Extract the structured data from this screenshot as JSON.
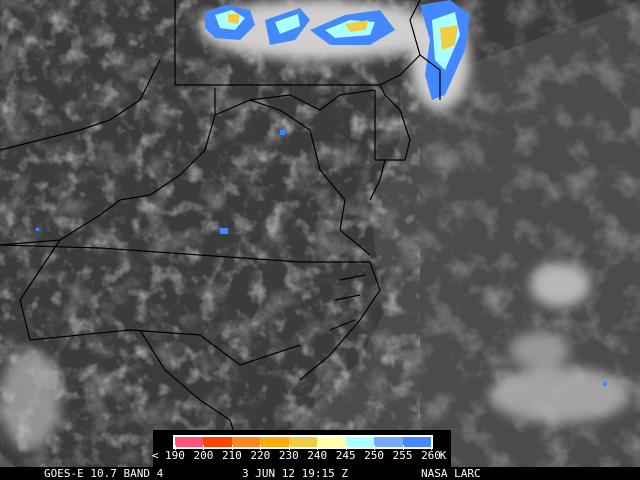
{
  "footer": {
    "satellite": "GOES-E 10.7 BAND 4",
    "datetime": "3 JUN 12 19:15 Z",
    "credit": "NASA LARC"
  },
  "legend": {
    "labels": [
      "< 190",
      "200",
      "210",
      "220",
      "230",
      "240",
      "245",
      "250",
      "255",
      "260",
      "K"
    ],
    "colors": [
      "#ff5577",
      "#ff4400",
      "#ff8822",
      "#ffaa11",
      "#eecc44",
      "#ffffaa",
      "#aaffff",
      "#77aaff",
      "#4488ff"
    ]
  },
  "colors": {
    "land_gray": "#3a3a3a",
    "ocean_gray": "#4a4a4a",
    "border": "#000000"
  }
}
